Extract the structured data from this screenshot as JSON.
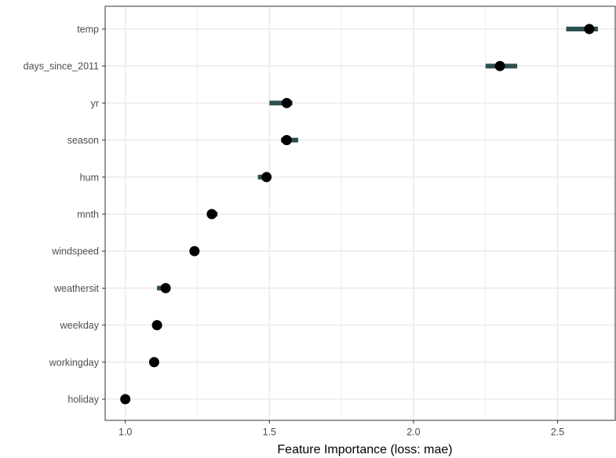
{
  "chart_data": {
    "type": "scatter",
    "title": "",
    "xlabel": "Feature Importance (loss: mae)",
    "ylabel": "",
    "xlim": [
      0.93,
      2.7
    ],
    "xticks": [
      1.0,
      1.5,
      2.0,
      2.5
    ],
    "xtick_labels": [
      "1.0",
      "1.5",
      "2.0",
      "2.5"
    ],
    "grid": true,
    "legend": "none",
    "features": [
      "temp",
      "days_since_2011",
      "yr",
      "season",
      "hum",
      "mnth",
      "windspeed",
      "weathersit",
      "weekday",
      "workingday",
      "holiday"
    ],
    "importance": [
      2.61,
      2.3,
      1.56,
      1.56,
      1.49,
      1.3,
      1.24,
      1.14,
      1.11,
      1.1,
      1.0
    ],
    "importance_low": [
      2.53,
      2.25,
      1.5,
      1.54,
      1.46,
      1.29,
      1.24,
      1.11,
      1.11,
      1.1,
      1.0
    ],
    "importance_high": [
      2.64,
      2.36,
      1.58,
      1.6,
      1.5,
      1.32,
      1.24,
      1.14,
      1.11,
      1.1,
      1.0
    ],
    "colors": {
      "point": "#000000",
      "interval": "#2f4f4f",
      "grid": "#ebebeb",
      "panel_border": "#333333",
      "tick_label": "#4d4d4d"
    }
  }
}
